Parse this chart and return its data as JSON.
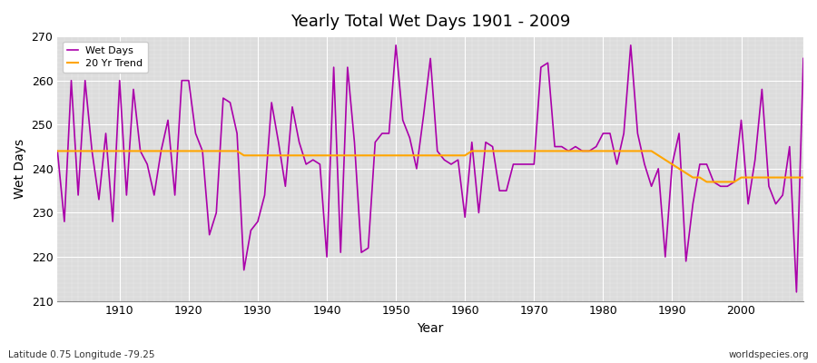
{
  "title": "Yearly Total Wet Days 1901 - 2009",
  "xlabel": "Year",
  "ylabel": "Wet Days",
  "footnote_left": "Latitude 0.75 Longitude -79.25",
  "footnote_right": "worldspecies.org",
  "legend_wet": "Wet Days",
  "legend_trend": "20 Yr Trend",
  "wet_color": "#AA00AA",
  "trend_color": "#FFA500",
  "background_color": "#DCDCDC",
  "grid_color": "#FFFFFF",
  "fig_color": "#FFFFFF",
  "ylim": [
    210,
    270
  ],
  "xlim": [
    1901,
    2009
  ],
  "yticks": [
    210,
    220,
    230,
    240,
    250,
    260,
    270
  ],
  "xticks": [
    1910,
    1920,
    1930,
    1940,
    1950,
    1960,
    1970,
    1980,
    1990,
    2000
  ],
  "years": [
    1901,
    1902,
    1903,
    1904,
    1905,
    1906,
    1907,
    1908,
    1909,
    1910,
    1911,
    1912,
    1913,
    1914,
    1915,
    1916,
    1917,
    1918,
    1919,
    1920,
    1921,
    1922,
    1923,
    1924,
    1925,
    1926,
    1927,
    1928,
    1929,
    1930,
    1931,
    1932,
    1933,
    1934,
    1935,
    1936,
    1937,
    1938,
    1939,
    1940,
    1941,
    1942,
    1943,
    1944,
    1945,
    1946,
    1947,
    1948,
    1949,
    1950,
    1951,
    1952,
    1953,
    1954,
    1955,
    1956,
    1957,
    1958,
    1959,
    1960,
    1961,
    1962,
    1963,
    1964,
    1965,
    1966,
    1967,
    1968,
    1969,
    1970,
    1971,
    1972,
    1973,
    1974,
    1975,
    1976,
    1977,
    1978,
    1979,
    1980,
    1981,
    1982,
    1983,
    1984,
    1985,
    1986,
    1987,
    1988,
    1989,
    1990,
    1991,
    1992,
    1993,
    1994,
    1995,
    1996,
    1997,
    1998,
    1999,
    2000,
    2001,
    2002,
    2003,
    2004,
    2005,
    2006,
    2007,
    2008,
    2009
  ],
  "wet_days": [
    244,
    228,
    260,
    234,
    260,
    244,
    233,
    248,
    228,
    260,
    234,
    258,
    244,
    241,
    234,
    244,
    251,
    234,
    260,
    260,
    248,
    244,
    225,
    230,
    256,
    255,
    248,
    217,
    226,
    228,
    234,
    255,
    246,
    236,
    254,
    246,
    241,
    242,
    241,
    220,
    263,
    221,
    263,
    246,
    221,
    222,
    246,
    248,
    248,
    268,
    251,
    247,
    240,
    252,
    265,
    244,
    242,
    241,
    242,
    229,
    246,
    230,
    246,
    245,
    235,
    235,
    241,
    241,
    241,
    241,
    263,
    264,
    245,
    245,
    244,
    245,
    244,
    244,
    245,
    248,
    248,
    241,
    248,
    268,
    248,
    241,
    236,
    240,
    220,
    241,
    248,
    219,
    232,
    241,
    241,
    237,
    236,
    236,
    237,
    251,
    232,
    242,
    258,
    236,
    232,
    234,
    245,
    212,
    265
  ],
  "trend_days": [
    244,
    244,
    244,
    244,
    244,
    244,
    244,
    244,
    244,
    244,
    244,
    244,
    244,
    244,
    244,
    244,
    244,
    244,
    244,
    244,
    244,
    244,
    244,
    244,
    244,
    244,
    244,
    243,
    243,
    243,
    243,
    243,
    243,
    243,
    243,
    243,
    243,
    243,
    243,
    243,
    243,
    243,
    243,
    243,
    243,
    243,
    243,
    243,
    243,
    243,
    243,
    243,
    243,
    243,
    243,
    243,
    243,
    243,
    243,
    243,
    244,
    244,
    244,
    244,
    244,
    244,
    244,
    244,
    244,
    244,
    244,
    244,
    244,
    244,
    244,
    244,
    244,
    244,
    244,
    244,
    244,
    244,
    244,
    244,
    244,
    244,
    244,
    243,
    242,
    241,
    240,
    239,
    238,
    238,
    237,
    237,
    237,
    237,
    237,
    238,
    238,
    238,
    238,
    238,
    238,
    238,
    238,
    238,
    238
  ]
}
